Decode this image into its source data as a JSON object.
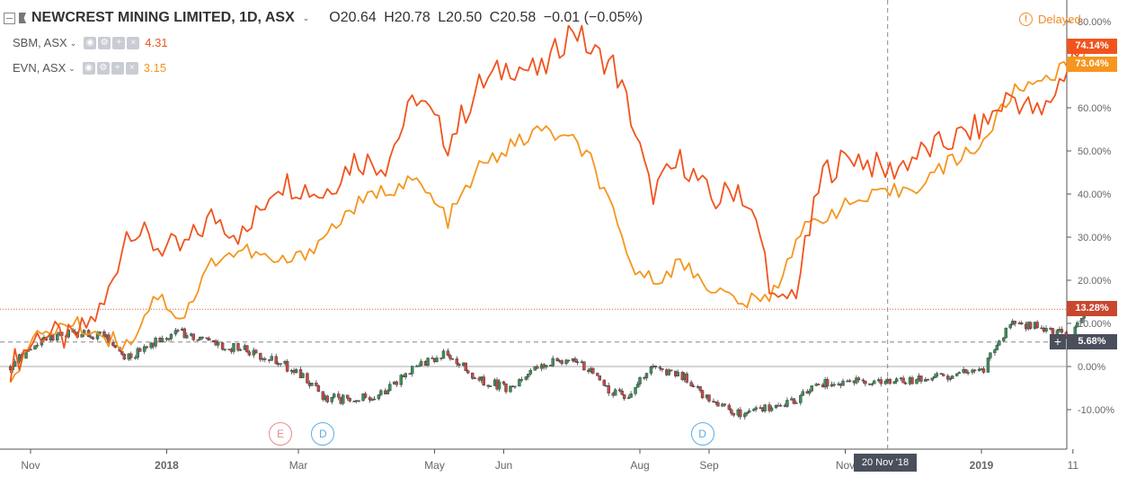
{
  "header": {
    "title": "NEWCREST MINING LIMITED, 1D, ASX",
    "ohlc": {
      "o": "O20.64",
      "h": "H20.78",
      "l": "L20.50",
      "c": "C20.58"
    },
    "change": "−0.01 (−0.05%)"
  },
  "legend": [
    {
      "name": "SBM, ASX",
      "value": "4.31",
      "color": "#f0541e"
    },
    {
      "name": "EVN, ASX",
      "value": "3.15",
      "color": "#f5961e"
    }
  ],
  "delayed_label": "Delayed",
  "badges": {
    "sbm": "74.14%",
    "evn": "73.04%",
    "ncm": "13.28%",
    "cursor": "5.68%"
  },
  "crosshair_date": "20 Nov '18",
  "events": [
    {
      "label": "E",
      "color": "#e88a8a",
      "date": "2018-02-21"
    },
    {
      "label": "D",
      "color": "#5aaee8",
      "date": "2018-03-12"
    },
    {
      "label": "D",
      "color": "#5aaee8",
      "date": "2018-08-29"
    }
  ],
  "colors": {
    "up": "#3b8f5a",
    "down": "#c24a4a",
    "sbm": "#f0541e",
    "evn": "#f5961e",
    "axis": "#666666"
  },
  "chart_data": {
    "type": "line",
    "ylim": [
      -16,
      85
    ],
    "yticks": [
      "80.00%",
      "70.00%",
      "60.00%",
      "50.00%",
      "40.00%",
      "30.00%",
      "20.00%",
      "10.00%",
      "0.00%",
      "-10.00%"
    ],
    "ytick_values": [
      80,
      70,
      60,
      50,
      40,
      30,
      20,
      10,
      0,
      -10
    ],
    "xticks": [
      "Nov",
      "2018",
      "Mar",
      "May",
      "Jun",
      "Aug",
      "Sep",
      "Nov",
      "2019",
      "11"
    ],
    "xtick_dates": [
      "2017-11-01",
      "2018-01-01",
      "2018-03-01",
      "2018-05-01",
      "2018-06-01",
      "2018-08-01",
      "2018-09-01",
      "2018-11-01",
      "2019-01-01",
      "2019-02-11"
    ],
    "x_range": [
      "2017-10-23",
      "2019-02-21"
    ],
    "grid": false,
    "series": [
      {
        "name": "SBM, ASX",
        "dates": [
          "2017-10-23",
          "2017-11-06",
          "2017-11-20",
          "2017-12-04",
          "2017-12-15",
          "2017-12-27",
          "2018-01-08",
          "2018-01-22",
          "2018-02-05",
          "2018-02-19",
          "2018-03-01",
          "2018-03-12",
          "2018-03-26",
          "2018-04-09",
          "2018-04-23",
          "2018-05-07",
          "2018-05-21",
          "2018-06-04",
          "2018-06-18",
          "2018-07-02",
          "2018-07-10",
          "2018-07-20",
          "2018-07-27",
          "2018-08-06",
          "2018-08-20",
          "2018-09-03",
          "2018-09-14",
          "2018-09-24",
          "2018-10-01",
          "2018-10-10",
          "2018-10-22",
          "2018-11-05",
          "2018-11-20",
          "2018-12-03",
          "2018-12-17",
          "2019-01-02",
          "2019-01-14",
          "2019-01-28",
          "2019-02-11",
          "2019-02-18"
        ],
        "values": [
          0,
          8,
          6,
          14,
          33,
          28,
          27,
          35,
          30,
          43,
          42,
          40,
          48,
          47,
          63,
          52,
          65,
          70,
          68,
          79,
          73,
          70,
          60,
          40,
          48,
          38,
          42,
          30,
          13,
          18,
          45,
          49,
          45,
          49,
          52,
          56,
          63,
          58,
          72,
          74.14
        ]
      },
      {
        "name": "EVN, ASX",
        "dates": [
          "2017-10-23",
          "2017-11-06",
          "2017-11-20",
          "2017-12-04",
          "2017-12-15",
          "2017-12-27",
          "2018-01-08",
          "2018-01-22",
          "2018-02-05",
          "2018-02-19",
          "2018-03-01",
          "2018-03-12",
          "2018-03-26",
          "2018-04-09",
          "2018-04-23",
          "2018-05-07",
          "2018-05-21",
          "2018-06-04",
          "2018-06-18",
          "2018-07-02",
          "2018-07-10",
          "2018-07-20",
          "2018-07-27",
          "2018-08-06",
          "2018-08-20",
          "2018-09-03",
          "2018-09-14",
          "2018-09-24",
          "2018-10-01",
          "2018-10-10",
          "2018-10-22",
          "2018-11-05",
          "2018-11-20",
          "2018-12-03",
          "2018-12-17",
          "2019-01-02",
          "2019-01-14",
          "2019-01-28",
          "2019-02-11",
          "2019-02-18"
        ],
        "values": [
          -2,
          8,
          10,
          7,
          5,
          17,
          11,
          25,
          27,
          24,
          25,
          30,
          37,
          41,
          43,
          34,
          46,
          51,
          55,
          52,
          48,
          35,
          24,
          20,
          24,
          18,
          15,
          15,
          18,
          30,
          35,
          38,
          40,
          42,
          47,
          52,
          63,
          67,
          70,
          73.04
        ]
      },
      {
        "name": "NCM",
        "type": "candles",
        "dates": [
          "2017-10-23",
          "2017-11-06",
          "2017-11-20",
          "2017-12-04",
          "2017-12-15",
          "2017-12-27",
          "2018-01-08",
          "2018-01-22",
          "2018-02-05",
          "2018-02-19",
          "2018-03-01",
          "2018-03-12",
          "2018-03-26",
          "2018-04-09",
          "2018-04-23",
          "2018-05-07",
          "2018-05-21",
          "2018-06-04",
          "2018-06-18",
          "2018-07-02",
          "2018-07-10",
          "2018-07-20",
          "2018-07-27",
          "2018-08-06",
          "2018-08-20",
          "2018-09-03",
          "2018-09-14",
          "2018-09-24",
          "2018-10-01",
          "2018-10-10",
          "2018-10-22",
          "2018-11-05",
          "2018-11-20",
          "2018-12-03",
          "2018-12-17",
          "2019-01-02",
          "2019-01-14",
          "2019-01-28",
          "2019-02-11",
          "2019-02-18"
        ],
        "values": [
          0,
          6,
          8,
          7,
          2,
          6,
          8,
          5,
          4,
          1,
          -1,
          -7,
          -8,
          -6,
          0,
          3,
          -3,
          -5,
          0,
          2,
          -1,
          -6,
          -7,
          0,
          -2,
          -9,
          -11,
          -10,
          -9,
          -8,
          -4,
          -3,
          -4,
          -3,
          -2,
          -1,
          10,
          9,
          7,
          13.28
        ]
      }
    ]
  }
}
